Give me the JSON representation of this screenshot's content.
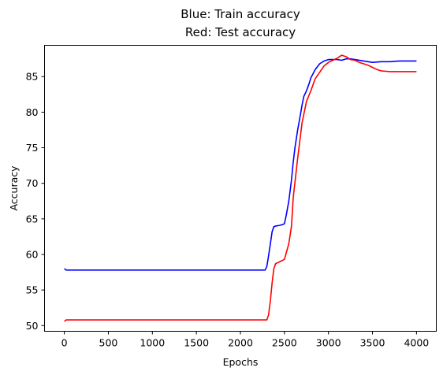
{
  "chart_data": {
    "type": "line",
    "title": [
      "Blue: Train accuracy",
      "Red: Test accuracy"
    ],
    "xlabel": "Epochs",
    "ylabel": "Accuracy",
    "xlim": [
      -225,
      4225
    ],
    "ylim": [
      49.2,
      89.4
    ],
    "xticks": [
      0,
      500,
      1000,
      1500,
      2000,
      2500,
      3000,
      3500,
      4000
    ],
    "yticks": [
      50,
      55,
      60,
      65,
      70,
      75,
      80,
      85
    ],
    "grid": false,
    "series": [
      {
        "color": "#0000ff",
        "x": [
          0,
          20,
          500,
          1000,
          1500,
          2000,
          2280,
          2300,
          2320,
          2340,
          2360,
          2380,
          2400,
          2450,
          2500,
          2520,
          2550,
          2580,
          2600,
          2620,
          2650,
          2680,
          2700,
          2720,
          2750,
          2780,
          2800,
          2850,
          2900,
          2950,
          3000,
          3050,
          3100,
          3150,
          3200,
          3250,
          3300,
          3400,
          3500,
          3600,
          3700,
          3800,
          3900,
          4000
        ],
        "y": [
          58.0,
          57.8,
          57.8,
          57.8,
          57.8,
          57.8,
          57.8,
          58.3,
          59.8,
          61.5,
          63.2,
          63.9,
          64.0,
          64.1,
          64.3,
          65.5,
          67.5,
          70.5,
          73.0,
          75.0,
          77.5,
          79.5,
          81.0,
          82.2,
          83.0,
          84.0,
          84.8,
          86.0,
          86.8,
          87.2,
          87.4,
          87.4,
          87.4,
          87.3,
          87.5,
          87.5,
          87.4,
          87.2,
          87.0,
          87.1,
          87.1,
          87.2,
          87.2,
          87.2
        ]
      },
      {
        "color": "#ff0000",
        "x": [
          0,
          20,
          500,
          1000,
          1500,
          2000,
          2300,
          2320,
          2340,
          2360,
          2380,
          2400,
          2450,
          2500,
          2550,
          2580,
          2600,
          2650,
          2700,
          2750,
          2800,
          2850,
          2900,
          2950,
          3000,
          3050,
          3100,
          3150,
          3200,
          3250,
          3300,
          3350,
          3400,
          3450,
          3500,
          3550,
          3600,
          3700,
          3800,
          3900,
          4000
        ],
        "y": [
          50.6,
          50.8,
          50.8,
          50.8,
          50.8,
          50.8,
          50.8,
          51.5,
          53.5,
          56.0,
          58.0,
          58.7,
          59.0,
          59.3,
          61.5,
          64.0,
          68.0,
          73.5,
          78.5,
          81.5,
          83.0,
          84.7,
          85.6,
          86.5,
          87.0,
          87.3,
          87.6,
          88.0,
          87.8,
          87.4,
          87.3,
          87.0,
          86.8,
          86.6,
          86.3,
          86.0,
          85.8,
          85.7,
          85.7,
          85.7,
          85.7
        ]
      }
    ]
  }
}
